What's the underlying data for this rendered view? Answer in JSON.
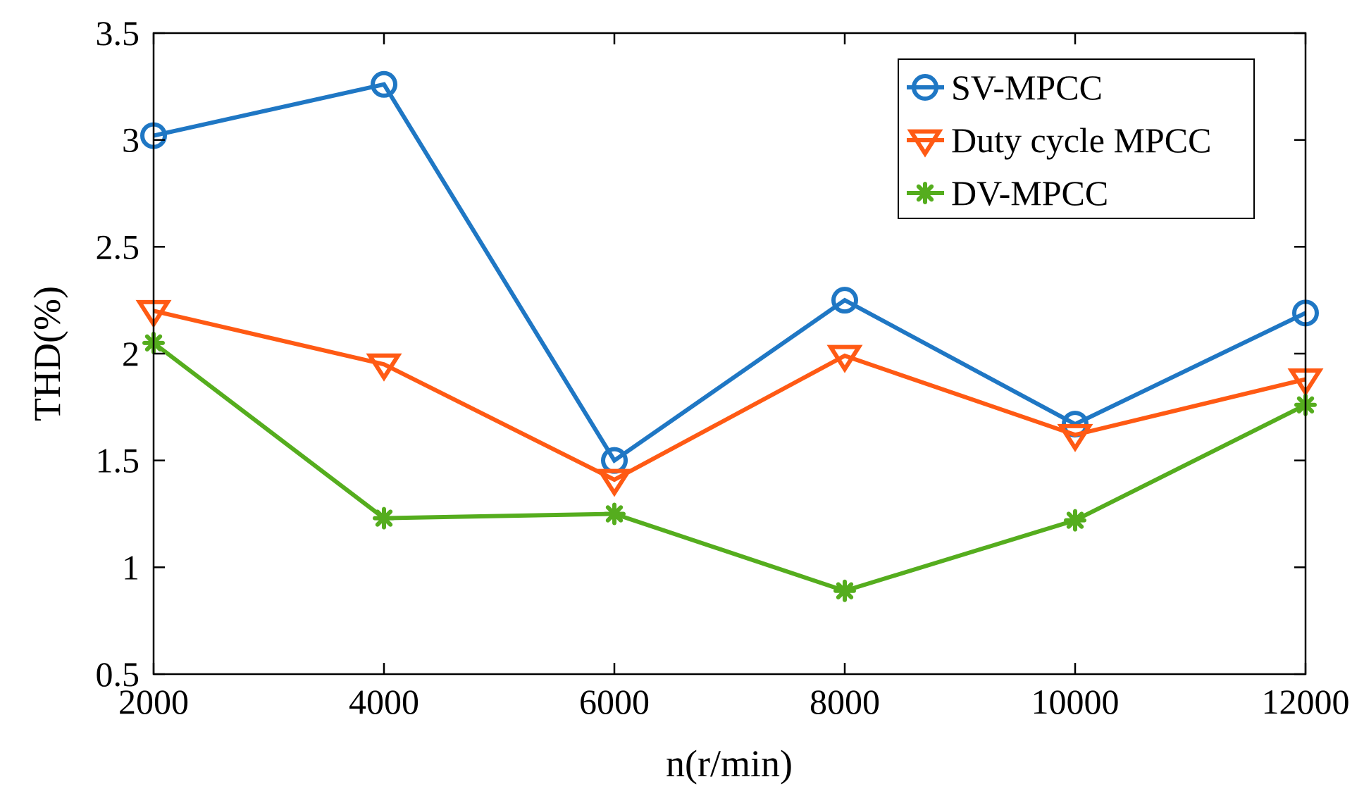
{
  "chart_data": {
    "type": "line",
    "title": "",
    "xlabel": "n(r/min)",
    "ylabel": "THD(%)",
    "x": [
      2000,
      4000,
      6000,
      8000,
      10000,
      12000
    ],
    "xlim": [
      2000,
      12000
    ],
    "ylim": [
      0.5,
      3.5
    ],
    "xticks": [
      "2000",
      "4000",
      "6000",
      "8000",
      "10000",
      "12000"
    ],
    "yticks": [
      "0.5",
      "1",
      "1.5",
      "2",
      "2.5",
      "3",
      "3.5"
    ],
    "grid": false,
    "legend_position": "top-right",
    "series": [
      {
        "name": "SV-MPCC",
        "marker": "circle",
        "color": "#1f77c4",
        "values": [
          3.02,
          3.26,
          1.5,
          2.25,
          1.67,
          2.19
        ]
      },
      {
        "name": "Duty cycle MPCC",
        "marker": "triangle-down",
        "color": "#ff5a14",
        "values": [
          2.2,
          1.95,
          1.41,
          1.99,
          1.62,
          1.88
        ]
      },
      {
        "name": "DV-MPCC",
        "marker": "asterisk",
        "color": "#55ad1e",
        "values": [
          2.05,
          1.23,
          1.25,
          0.89,
          1.22,
          1.76
        ]
      }
    ]
  }
}
